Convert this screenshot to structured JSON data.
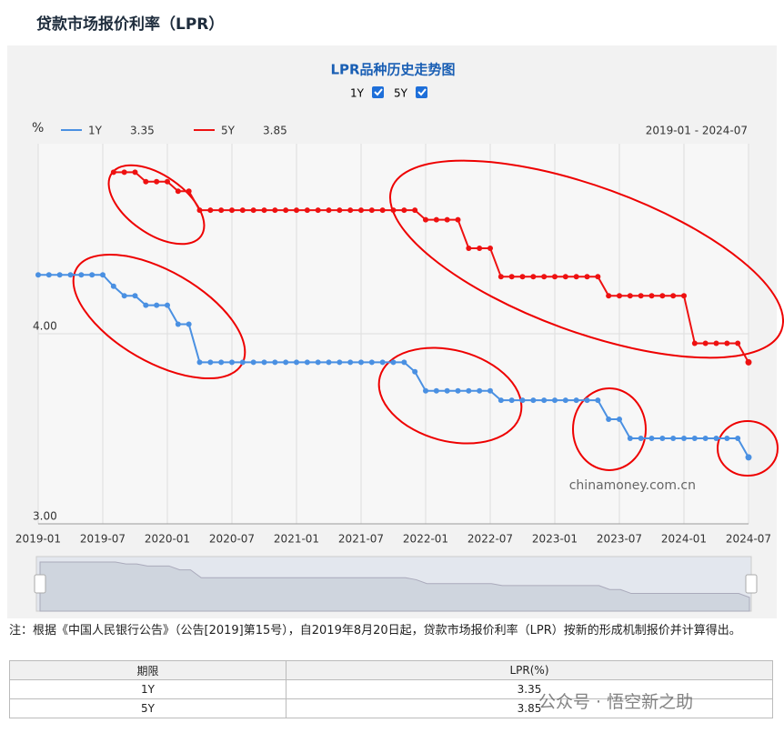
{
  "header": {
    "title": "贷款市场报价利率（LPR）"
  },
  "chart_data": {
    "type": "line",
    "title": "LPR品种历史走势图",
    "y_unit": "%",
    "range_label": "2019-01 - 2024-07",
    "watermark": "chinamoney.com.cn",
    "x": [
      "2019-01",
      "2019-02",
      "2019-03",
      "2019-04",
      "2019-05",
      "2019-06",
      "2019-07",
      "2019-08",
      "2019-09",
      "2019-10",
      "2019-11",
      "2019-12",
      "2020-01",
      "2020-02",
      "2020-03",
      "2020-04",
      "2020-05",
      "2020-06",
      "2020-07",
      "2020-08",
      "2020-09",
      "2020-10",
      "2020-11",
      "2020-12",
      "2021-01",
      "2021-02",
      "2021-03",
      "2021-04",
      "2021-05",
      "2021-06",
      "2021-07",
      "2021-08",
      "2021-09",
      "2021-10",
      "2021-11",
      "2021-12",
      "2022-01",
      "2022-02",
      "2022-03",
      "2022-04",
      "2022-05",
      "2022-06",
      "2022-07",
      "2022-08",
      "2022-09",
      "2022-10",
      "2022-11",
      "2022-12",
      "2023-01",
      "2023-02",
      "2023-03",
      "2023-04",
      "2023-05",
      "2023-06",
      "2023-07",
      "2023-08",
      "2023-09",
      "2023-10",
      "2023-11",
      "2023-12",
      "2024-01",
      "2024-02",
      "2024-03",
      "2024-04",
      "2024-05",
      "2024-06",
      "2024-07"
    ],
    "series": [
      {
        "name": "1Y",
        "color": "#4a90e2",
        "values": [
          4.31,
          4.31,
          4.31,
          4.31,
          4.31,
          4.31,
          4.31,
          4.25,
          4.2,
          4.2,
          4.15,
          4.15,
          4.15,
          4.05,
          4.05,
          3.85,
          3.85,
          3.85,
          3.85,
          3.85,
          3.85,
          3.85,
          3.85,
          3.85,
          3.85,
          3.85,
          3.85,
          3.85,
          3.85,
          3.85,
          3.85,
          3.85,
          3.85,
          3.85,
          3.85,
          3.8,
          3.7,
          3.7,
          3.7,
          3.7,
          3.7,
          3.7,
          3.7,
          3.65,
          3.65,
          3.65,
          3.65,
          3.65,
          3.65,
          3.65,
          3.65,
          3.65,
          3.65,
          3.55,
          3.55,
          3.45,
          3.45,
          3.45,
          3.45,
          3.45,
          3.45,
          3.45,
          3.45,
          3.45,
          3.45,
          3.45,
          3.35
        ]
      },
      {
        "name": "5Y",
        "color": "#ee1111",
        "values": [
          null,
          null,
          null,
          null,
          null,
          null,
          null,
          4.85,
          4.85,
          4.85,
          4.8,
          4.8,
          4.8,
          4.75,
          4.75,
          4.65,
          4.65,
          4.65,
          4.65,
          4.65,
          4.65,
          4.65,
          4.65,
          4.65,
          4.65,
          4.65,
          4.65,
          4.65,
          4.65,
          4.65,
          4.65,
          4.65,
          4.65,
          4.65,
          4.65,
          4.65,
          4.6,
          4.6,
          4.6,
          4.6,
          4.45,
          4.45,
          4.45,
          4.3,
          4.3,
          4.3,
          4.3,
          4.3,
          4.3,
          4.3,
          4.3,
          4.3,
          4.3,
          4.2,
          4.2,
          4.2,
          4.2,
          4.2,
          4.2,
          4.2,
          4.2,
          3.95,
          3.95,
          3.95,
          3.95,
          3.95,
          3.85
        ]
      }
    ],
    "xlim": [
      "2019-01",
      "2024-07"
    ],
    "xticks": [
      "2019-01",
      "2019-07",
      "2020-01",
      "2020-07",
      "2021-01",
      "2021-07",
      "2022-01",
      "2022-07",
      "2023-01",
      "2023-07",
      "2024-01",
      "2024-07"
    ],
    "ylim": [
      3,
      5
    ],
    "yticks": [
      {
        "value": 3,
        "label": "3.00"
      },
      {
        "value": 4,
        "label": "4.00"
      }
    ],
    "grid": true
  },
  "note": "注：根据《中国人民银行公告》（公告[2019]第15号），自2019年8月20日起，贷款市场报价利率（LPR）按新的形成机制报价并计算得出。",
  "table": {
    "header": [
      "期限",
      "LPR(%)"
    ],
    "rows": [
      [
        "1Y",
        "3.35"
      ],
      [
        "5Y",
        "3.85"
      ]
    ]
  },
  "watermark": "公众号 · 悟空新之助"
}
